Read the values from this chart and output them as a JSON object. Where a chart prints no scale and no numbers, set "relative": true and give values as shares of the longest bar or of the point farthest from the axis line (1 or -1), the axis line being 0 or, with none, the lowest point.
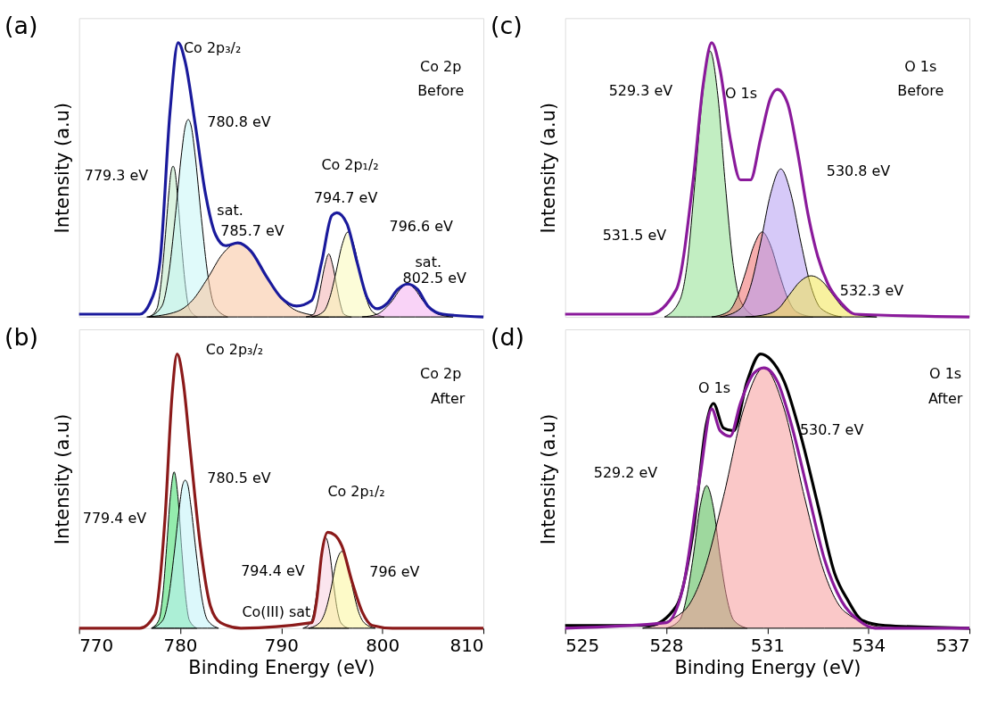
{
  "chart_data": [
    {
      "type": "line",
      "title": "(a)",
      "ylabel": "Intensity (a.u)",
      "relative": true,
      "xlim": [
        770,
        810
      ],
      "xticks": [
        770,
        780,
        790,
        800,
        810
      ],
      "tick_labels": false,
      "grid": false,
      "legend": false,
      "annotations": [
        "Co 2p",
        "Before",
        "Co 2p₃/₂",
        "780.8 eV",
        "779.3 eV",
        "sat.",
        "785.7 eV",
        "Co 2p₁/₂",
        "794.7 eV",
        "796.6 eV",
        "sat.",
        "802.5 eV"
      ],
      "series": [
        {
          "type": "area",
          "color": "#bfe9c6",
          "x": [
            776.9,
            777.7,
            778.1,
            778.5,
            778.9,
            779.1,
            779.3,
            779.5,
            779.7,
            780.1,
            780.5,
            780.9,
            781.7
          ],
          "values": [
            0,
            0.03,
            0.12,
            0.28,
            0.46,
            0.53,
            0.55,
            0.53,
            0.46,
            0.28,
            0.12,
            0.03,
            0
          ]
        },
        {
          "type": "area",
          "color": "#c6f5f5",
          "x": [
            776.9,
            778.2,
            778.85,
            779.5,
            780.15,
            780.475,
            780.8,
            781.125,
            781.45,
            782.1,
            782.75,
            783.4,
            784.7
          ],
          "values": [
            0,
            0.04,
            0.15,
            0.36,
            0.6,
            0.69,
            0.72,
            0.69,
            0.6,
            0.36,
            0.15,
            0.04,
            0
          ]
        },
        {
          "type": "area",
          "color": "#f7c39c",
          "x": [
            776.7,
            779.7,
            781.2,
            782.7,
            784.2,
            785.7,
            787.2,
            788.7,
            790.2,
            791.7,
            794.7
          ],
          "values": [
            0,
            0.02,
            0.06,
            0.14,
            0.23,
            0.27,
            0.23,
            0.14,
            0.06,
            0.02,
            0
          ]
        },
        {
          "type": "area",
          "color": "#f2b0b0",
          "x": [
            792.45,
            793.2,
            793.58,
            793.95,
            794.33,
            794.7,
            795.08,
            795.45,
            795.83,
            796.2,
            796.95
          ],
          "values": [
            0,
            0.01,
            0.05,
            0.12,
            0.19,
            0.23,
            0.19,
            0.12,
            0.05,
            0.01,
            0
          ]
        },
        {
          "type": "area",
          "color": "#fafab8",
          "x": [
            793,
            794.2,
            794.8,
            795.4,
            796,
            796.6,
            797.2,
            797.8,
            798.4,
            799,
            800.2
          ],
          "values": [
            0,
            0.02,
            0.07,
            0.16,
            0.26,
            0.31,
            0.26,
            0.16,
            0.07,
            0.02,
            0
          ]
        },
        {
          "type": "area",
          "color": "#f4aef0",
          "x": [
            798,
            799.5,
            800.25,
            801,
            801.75,
            802.5,
            803.25,
            804,
            804.75,
            805.5,
            807
          ],
          "values": [
            0,
            0.01,
            0.03,
            0.06,
            0.1,
            0.12,
            0.1,
            0.06,
            0.03,
            0.01,
            0
          ]
        },
        {
          "type": "line",
          "color": "#1a1a9c",
          "x": [
            770,
            776,
            777,
            778,
            779,
            779.8,
            780.5,
            781.5,
            782.5,
            783.5,
            784.5,
            785.7,
            787,
            788.5,
            790,
            791.5,
            793,
            794,
            795,
            795.5,
            796.5,
            797.5,
            798.5,
            799.5,
            800.5,
            801.5,
            802.5,
            803.5,
            804.5,
            806,
            810
          ],
          "values": [
            0.01,
            0.01,
            0.05,
            0.2,
            0.75,
            1.0,
            0.93,
            0.7,
            0.45,
            0.3,
            0.26,
            0.27,
            0.24,
            0.15,
            0.07,
            0.04,
            0.06,
            0.2,
            0.37,
            0.38,
            0.34,
            0.2,
            0.07,
            0.03,
            0.05,
            0.1,
            0.12,
            0.1,
            0.04,
            0.01,
            0
          ]
        }
      ]
    },
    {
      "type": "line",
      "title": "(b)",
      "xlabel": "Binding Energy (eV)",
      "ylabel": "Intensity (a.u)",
      "relative": true,
      "xlim": [
        770,
        810
      ],
      "xticks": [
        770,
        780,
        790,
        800,
        810
      ],
      "tick_labels": "x",
      "grid": false,
      "legend": false,
      "annotations": [
        "Co 2p",
        "After",
        "Co 2p₃/₂",
        "780.5 eV",
        "779.4 eV",
        "794.4 eV",
        "Co 2p₁/₂",
        "796 eV",
        "Co(III) sat"
      ],
      "series": [
        {
          "type": "area",
          "color": "#3ddc6a",
          "x": [
            777.15,
            777.9,
            778.28,
            778.65,
            779.03,
            779.4,
            779.78,
            780.15,
            780.53,
            780.9,
            781.65
          ],
          "values": [
            0,
            0.03,
            0.12,
            0.29,
            0.48,
            0.57,
            0.48,
            0.29,
            0.12,
            0.03,
            0
          ]
        },
        {
          "type": "area",
          "color": "#bff3f7",
          "x": [
            777.2,
            778.3,
            778.85,
            779.4,
            779.95,
            780.225,
            780.5,
            780.775,
            781.05,
            781.6,
            782.15,
            782.7,
            783.8
          ],
          "values": [
            0,
            0.03,
            0.11,
            0.27,
            0.45,
            0.52,
            0.54,
            0.52,
            0.45,
            0.27,
            0.11,
            0.03,
            0
          ]
        },
        {
          "type": "area",
          "color": "#f8d0e0",
          "x": [
            792.15,
            792.9,
            793.28,
            793.65,
            794.03,
            794.4,
            794.78,
            795.15,
            795.53,
            795.9,
            796.65
          ],
          "values": [
            0,
            0.02,
            0.07,
            0.17,
            0.28,
            0.33,
            0.28,
            0.17,
            0.07,
            0.02,
            0
          ]
        },
        {
          "type": "area",
          "color": "#fbf59a",
          "x": [
            792.7,
            793.8,
            794.35,
            794.9,
            795.45,
            796,
            796.55,
            797.1,
            797.65,
            798.2,
            799.3
          ],
          "values": [
            0,
            0.02,
            0.06,
            0.14,
            0.24,
            0.28,
            0.24,
            0.14,
            0.06,
            0.02,
            0
          ]
        },
        {
          "type": "line",
          "color": "#8b1a1a",
          "x": [
            770,
            776,
            777.5,
            778.5,
            779.2,
            779.7,
            780.3,
            781,
            782,
            783,
            784,
            786,
            793,
            793.5,
            794,
            794.6,
            795.3,
            796,
            797,
            798,
            799,
            801,
            810
          ],
          "values": [
            0,
            0,
            0.05,
            0.4,
            0.85,
            1.0,
            0.9,
            0.65,
            0.3,
            0.08,
            0.02,
            0,
            0.02,
            0.1,
            0.27,
            0.35,
            0.34,
            0.3,
            0.17,
            0.06,
            0.01,
            0,
            0
          ]
        }
      ]
    },
    {
      "type": "line",
      "title": "(c)",
      "ylabel": "Intensity (a.u)",
      "relative": true,
      "xlim": [
        525,
        537
      ],
      "xticks": [
        525,
        528,
        531,
        534,
        537
      ],
      "tick_labels": false,
      "grid": false,
      "legend": false,
      "annotations": [
        "O 1s",
        "Before",
        "529.3 eV",
        "O 1s",
        "530.8 eV",
        "531.5 eV",
        "532.3 eV"
      ],
      "series": [
        {
          "type": "area",
          "color": "#8fe08f",
          "x": [
            527.95,
            528.4,
            528.63,
            528.85,
            529.08,
            529.3,
            529.53,
            529.75,
            529.98,
            530.2,
            530.65
          ],
          "values": [
            0,
            0.06,
            0.2,
            0.49,
            0.81,
            0.97,
            0.81,
            0.49,
            0.2,
            0.06,
            0
          ]
        },
        {
          "type": "area",
          "color": "#ee6a6a",
          "x": [
            529.35,
            529.85,
            530.1,
            530.35,
            530.6,
            530.85,
            531.1,
            531.35,
            531.6,
            531.85,
            532.35
          ],
          "values": [
            0,
            0.02,
            0.07,
            0.16,
            0.26,
            0.31,
            0.26,
            0.16,
            0.07,
            0.02,
            0
          ]
        },
        {
          "type": "area",
          "color": "#b59cf2",
          "x": [
            529.6,
            530.2,
            530.5,
            530.8,
            531.1,
            531.4,
            531.7,
            532,
            532.3,
            532.6,
            533.2
          ],
          "values": [
            0,
            0.03,
            0.11,
            0.27,
            0.45,
            0.54,
            0.45,
            0.27,
            0.11,
            0.03,
            0
          ]
        },
        {
          "type": "area",
          "color": "#f2e650",
          "x": [
            530.35,
            531,
            531.33,
            531.65,
            531.98,
            532.3,
            532.63,
            532.95,
            533.28,
            533.6,
            534.25
          ],
          "values": [
            0,
            0.01,
            0.03,
            0.08,
            0.13,
            0.15,
            0.13,
            0.08,
            0.03,
            0.01,
            0
          ]
        },
        {
          "type": "line",
          "color": "#8a1a9b",
          "x": [
            525,
            527.5,
            528.3,
            528.8,
            529.1,
            529.35,
            529.6,
            529.9,
            530.2,
            530.5,
            530.8,
            531.1,
            531.3,
            531.6,
            531.9,
            532.2,
            532.5,
            532.8,
            533.2,
            533.6,
            537
          ],
          "values": [
            0.01,
            0.01,
            0.1,
            0.5,
            0.85,
            1.0,
            0.9,
            0.65,
            0.5,
            0.5,
            0.65,
            0.8,
            0.83,
            0.78,
            0.6,
            0.38,
            0.22,
            0.12,
            0.05,
            0.01,
            0
          ]
        }
      ]
    },
    {
      "type": "line",
      "title": "(d)",
      "xlabel": "Binding Energy (eV)",
      "ylabel": "Intensity (a.u)",
      "relative": true,
      "xlim": [
        525,
        537
      ],
      "xticks": [
        525,
        528,
        531,
        534,
        537
      ],
      "tick_labels": "x",
      "grid": false,
      "legend": false,
      "annotations": [
        "O 1s",
        "After",
        "O 1s",
        "530.7 eV",
        "529.2 eV"
      ],
      "series": [
        {
          "type": "area",
          "color": "#4fb84f",
          "x": [
            528,
            528.4,
            528.6,
            528.8,
            529,
            529.2,
            529.4,
            529.6,
            529.8,
            530,
            530.4
          ],
          "values": [
            0,
            0.03,
            0.11,
            0.26,
            0.44,
            0.52,
            0.44,
            0.26,
            0.11,
            0.03,
            0
          ]
        },
        {
          "type": "area",
          "color": "#f59a9a",
          "x": [
            527.3,
            528.5,
            529.1,
            529.7,
            530.3,
            530.9,
            531.5,
            532.1,
            532.7,
            533.3,
            534.5
          ],
          "values": [
            0,
            0.06,
            0.2,
            0.48,
            0.8,
            0.95,
            0.8,
            0.48,
            0.2,
            0.06,
            0
          ]
        },
        {
          "type": "line",
          "color": "#000000",
          "x": [
            525,
            527.5,
            528.3,
            528.8,
            529.2,
            529.4,
            529.7,
            530,
            530.4,
            530.8,
            531.1,
            531.5,
            532,
            532.5,
            533,
            533.4,
            533.8,
            534.5,
            537
          ],
          "values": [
            0.01,
            0.01,
            0.08,
            0.35,
            0.75,
            0.82,
            0.73,
            0.72,
            0.9,
            1.0,
            0.98,
            0.9,
            0.7,
            0.45,
            0.2,
            0.1,
            0.03,
            0.01,
            0
          ]
        },
        {
          "type": "line",
          "color": "#8a1a9b",
          "x": [
            525,
            528,
            528.5,
            529,
            529.35,
            529.6,
            529.9,
            530.2,
            530.6,
            530.9,
            531.3,
            531.7,
            532.2,
            532.7,
            533.2,
            533.7,
            534.2,
            537
          ],
          "values": [
            0,
            0.02,
            0.15,
            0.55,
            0.8,
            0.72,
            0.7,
            0.82,
            0.93,
            0.95,
            0.9,
            0.75,
            0.5,
            0.25,
            0.1,
            0.03,
            0,
            0
          ]
        }
      ]
    }
  ]
}
